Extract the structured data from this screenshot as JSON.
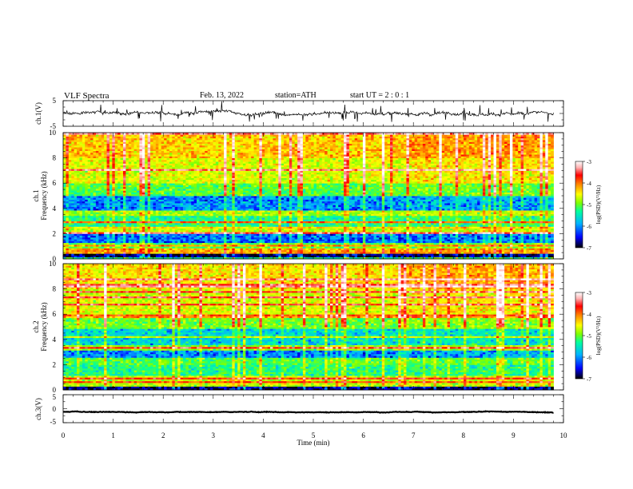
{
  "header": {
    "title": "VLF  Spectra",
    "date": "Feb. 13, 2022",
    "station": "station=ATH",
    "start_ut": "start  UT  =   2  : 0   : 1"
  },
  "colors": {
    "colormap": [
      "#000000",
      "#0000ff",
      "#00b4ff",
      "#00ffa0",
      "#80ff00",
      "#ffff00",
      "#ff8000",
      "#ff0000",
      "#ffb4b4",
      "#ffffff"
    ],
    "trace": "#000000"
  },
  "chart_data": [
    {
      "type": "line",
      "panel": "ch1-waveform",
      "ylabel": "ch.1(V)",
      "ylim": [
        -5,
        5
      ],
      "yticks": [
        "5",
        "-5"
      ],
      "xlim": [
        0,
        10
      ],
      "data_end_min": 9.8,
      "description_values": {
        "mean": 0,
        "typical_amplitude": 0.8,
        "spike_amplitude": 2.5
      }
    },
    {
      "type": "heatmap",
      "panel": "ch1-spectrogram",
      "ylabel": "ch.1\nFrequency (kHz)",
      "ylabel_top": "ch.1",
      "ylabel_bottom": "Frequency (kHz)",
      "xlim": [
        0,
        10
      ],
      "ylim": [
        0,
        10
      ],
      "yticks": [
        "0",
        "2",
        "4",
        "6",
        "8",
        "10"
      ],
      "data_end_min": 9.8,
      "colorbar": {
        "label": "log(PSD)(V²/Hz)",
        "range": [
          -7,
          -3
        ],
        "ticks": [
          "-3",
          "-4",
          "-5",
          "-6",
          "-7"
        ]
      },
      "bands": [
        {
          "from_khz": 0,
          "to_khz": 0.4,
          "log_psd": -6.8
        },
        {
          "from_khz": 0.4,
          "to_khz": 0.9,
          "log_psd": -4.5
        },
        {
          "from_khz": 0.9,
          "to_khz": 1.3,
          "log_psd": -5.3
        },
        {
          "from_khz": 1.3,
          "to_khz": 2.0,
          "log_psd": -6.3
        },
        {
          "from_khz": 2.0,
          "to_khz": 2.4,
          "log_psd": -5.0
        },
        {
          "from_khz": 2.4,
          "to_khz": 3.4,
          "log_psd": -5.6
        },
        {
          "from_khz": 3.4,
          "to_khz": 3.8,
          "log_psd": -5.1
        },
        {
          "from_khz": 3.8,
          "to_khz": 5.0,
          "log_psd": -6.2
        },
        {
          "from_khz": 5.0,
          "to_khz": 6.0,
          "log_psd": -5.4
        },
        {
          "from_khz": 6.0,
          "to_khz": 8.0,
          "log_psd": -4.9
        },
        {
          "from_khz": 8.0,
          "to_khz": 10.0,
          "log_psd": -4.6
        }
      ]
    },
    {
      "type": "heatmap",
      "panel": "ch2-spectrogram",
      "ylabel": "ch.2\nFrequency (kHz)",
      "ylabel_top": "ch.2",
      "ylabel_bottom": "Frequency (kHz)",
      "xlim": [
        0,
        10
      ],
      "ylim": [
        0,
        10
      ],
      "yticks": [
        "0",
        "2",
        "4",
        "6",
        "8",
        "10"
      ],
      "data_end_min": 9.8,
      "colorbar": {
        "label": "log(PSD)(V²/Hz)",
        "range": [
          -7,
          -3
        ],
        "ticks": [
          "-3",
          "-4",
          "-5",
          "-6",
          "-7"
        ]
      },
      "bands": [
        {
          "from_khz": 0,
          "to_khz": 0.3,
          "log_psd": -6.8
        },
        {
          "from_khz": 0.3,
          "to_khz": 1.2,
          "log_psd": -5.0
        },
        {
          "from_khz": 1.2,
          "to_khz": 2.0,
          "log_psd": -5.6
        },
        {
          "from_khz": 2.0,
          "to_khz": 2.6,
          "log_psd": -5.4
        },
        {
          "from_khz": 2.6,
          "to_khz": 3.2,
          "log_psd": -6.2
        },
        {
          "from_khz": 3.2,
          "to_khz": 3.6,
          "log_psd": -5.2
        },
        {
          "from_khz": 3.6,
          "to_khz": 4.8,
          "log_psd": -5.9
        },
        {
          "from_khz": 4.8,
          "to_khz": 6.0,
          "log_psd": -5.3
        },
        {
          "from_khz": 6.0,
          "to_khz": 8.0,
          "log_psd": -4.9
        },
        {
          "from_khz": 8.0,
          "to_khz": 10.0,
          "log_psd": -4.7
        }
      ]
    },
    {
      "type": "line",
      "panel": "ch3-waveform",
      "ylabel": "ch.3(V)",
      "ylim": [
        -5,
        5
      ],
      "yticks": [
        "5",
        "0",
        "-5"
      ],
      "xlim": [
        0,
        10
      ],
      "data_end_min": 9.8,
      "description_values": {
        "mean": -1.2,
        "typical_amplitude": 0.15
      }
    }
  ],
  "xaxis": {
    "label": "Time  (min)",
    "ticks": [
      "0",
      "1",
      "2",
      "3",
      "4",
      "5",
      "6",
      "7",
      "8",
      "9",
      "10"
    ]
  }
}
